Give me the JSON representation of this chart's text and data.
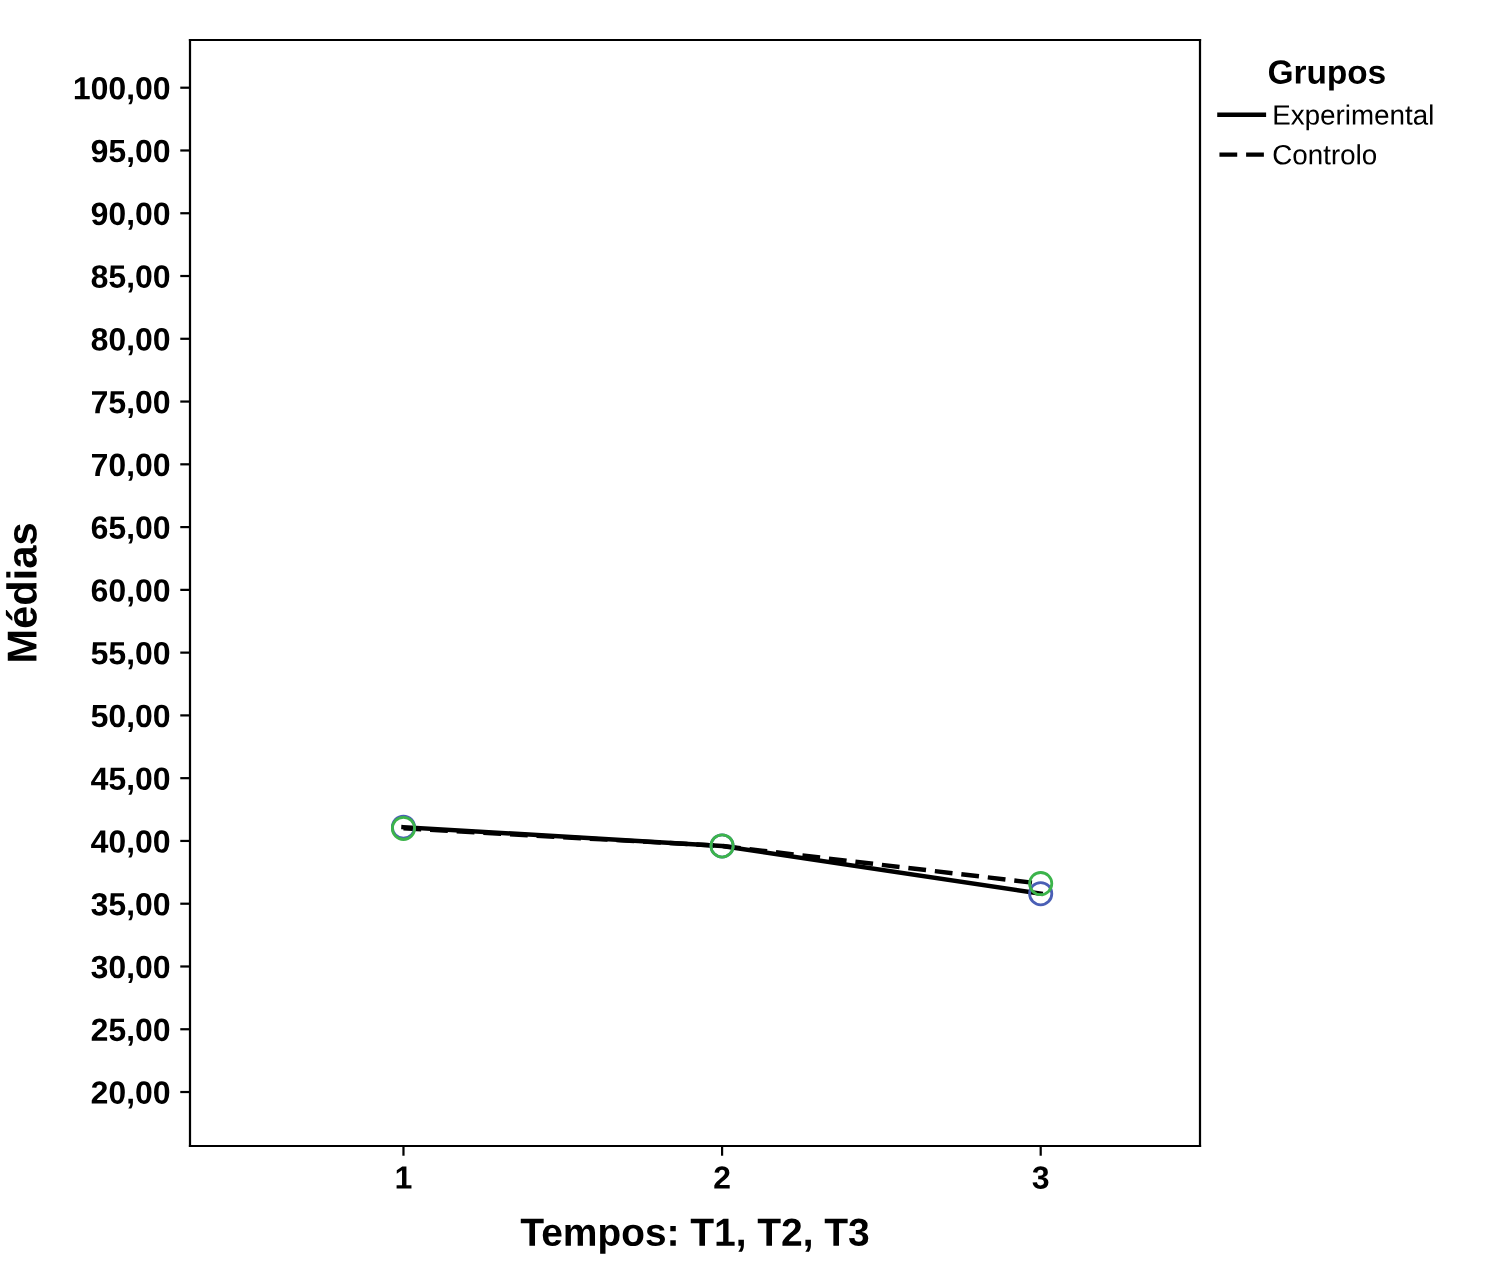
{
  "chart_data": {
    "type": "line",
    "xlabel": "Tempos: T1, T2, T3",
    "ylabel": "Médias",
    "legend_title": "Grupos",
    "categories": [
      "1",
      "2",
      "3"
    ],
    "series": [
      {
        "name": "Experimental",
        "color": "#000000",
        "colors": [
          "#4a5fb5",
          "#4a5fb5",
          "#4a5fb5"
        ],
        "line_style": "solid",
        "values": [
          41.1,
          39.6,
          35.8
        ]
      },
      {
        "name": "Controlo",
        "color": "#000000",
        "colors": [
          "#3cb44b",
          "#3cb44b",
          "#3cb44b"
        ],
        "line_style": "dashed",
        "values": [
          41.0,
          39.6,
          36.6
        ]
      }
    ],
    "marker": "circle",
    "ylim": [
      15.7,
      103.8
    ],
    "yticks": [
      {
        "value": 20,
        "label": "20,00"
      },
      {
        "value": 25,
        "label": "25,00"
      },
      {
        "value": 30,
        "label": "30,00"
      },
      {
        "value": 35,
        "label": "35,00"
      },
      {
        "value": 40,
        "label": "40,00"
      },
      {
        "value": 45,
        "label": "45,00"
      },
      {
        "value": 50,
        "label": "50,00"
      },
      {
        "value": 55,
        "label": "55,00"
      },
      {
        "value": 60,
        "label": "60,00"
      },
      {
        "value": 65,
        "label": "65,00"
      },
      {
        "value": 70,
        "label": "70,00"
      },
      {
        "value": 75,
        "label": "75,00"
      },
      {
        "value": 80,
        "label": "80,00"
      },
      {
        "value": 85,
        "label": "85,00"
      },
      {
        "value": 90,
        "label": "90,00"
      },
      {
        "value": 95,
        "label": "95,00"
      },
      {
        "value": 100,
        "label": "100,00"
      }
    ],
    "grid": false,
    "legend": "top right"
  }
}
